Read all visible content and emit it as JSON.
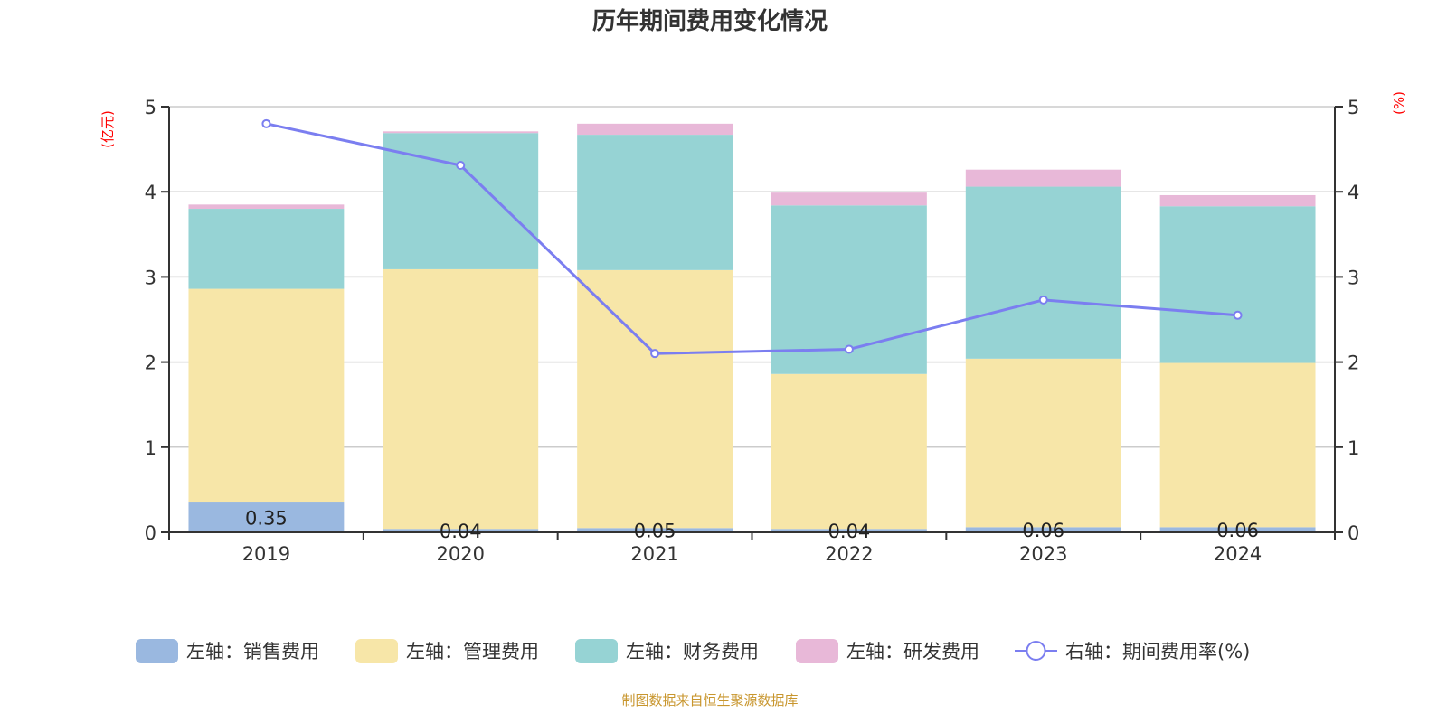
{
  "chart_data": {
    "type": "bar",
    "title": "历年期间费用变化情况",
    "categories": [
      "2019",
      "2020",
      "2021",
      "2022",
      "2023",
      "2024"
    ],
    "left_axis": {
      "unit_label": "(亿元)",
      "ylim": [
        0,
        5
      ],
      "ticks": [
        "0",
        "1",
        "2",
        "3",
        "4",
        "5"
      ]
    },
    "right_axis": {
      "unit_label": "(%)",
      "ylim": [
        0,
        5
      ],
      "ticks": [
        "0",
        "1",
        "2",
        "3",
        "4",
        "5"
      ]
    },
    "grid": true,
    "stacked": true,
    "series": [
      {
        "name": "左轴：销售费用",
        "type": "bar",
        "axis": "left",
        "color": "#9ab8e0",
        "values": [
          0.35,
          0.04,
          0.05,
          0.04,
          0.06,
          0.06
        ],
        "labels": [
          "0.35",
          "0.04",
          "0.05",
          "0.04",
          "0.06",
          "0.06"
        ]
      },
      {
        "name": "左轴：管理费用",
        "type": "bar",
        "axis": "left",
        "color": "#f7e6a8",
        "values": [
          2.51,
          3.05,
          3.03,
          1.82,
          1.98,
          1.93
        ]
      },
      {
        "name": "左轴：财务费用",
        "type": "bar",
        "axis": "left",
        "color": "#96d3d4",
        "values": [
          0.94,
          1.6,
          1.59,
          1.98,
          2.02,
          1.84
        ]
      },
      {
        "name": "左轴：研发费用",
        "type": "bar",
        "axis": "left",
        "color": "#e8b8d8",
        "values": [
          0.05,
          0.02,
          0.13,
          0.15,
          0.2,
          0.13
        ]
      },
      {
        "name": "右轴：期间费用率(%)",
        "type": "line",
        "axis": "right",
        "color": "#7b7ef0",
        "values": [
          4.8,
          4.31,
          2.1,
          2.15,
          2.73,
          2.55
        ]
      }
    ],
    "legend_position": "bottom",
    "source": "制图数据来自恒生聚源数据库"
  }
}
